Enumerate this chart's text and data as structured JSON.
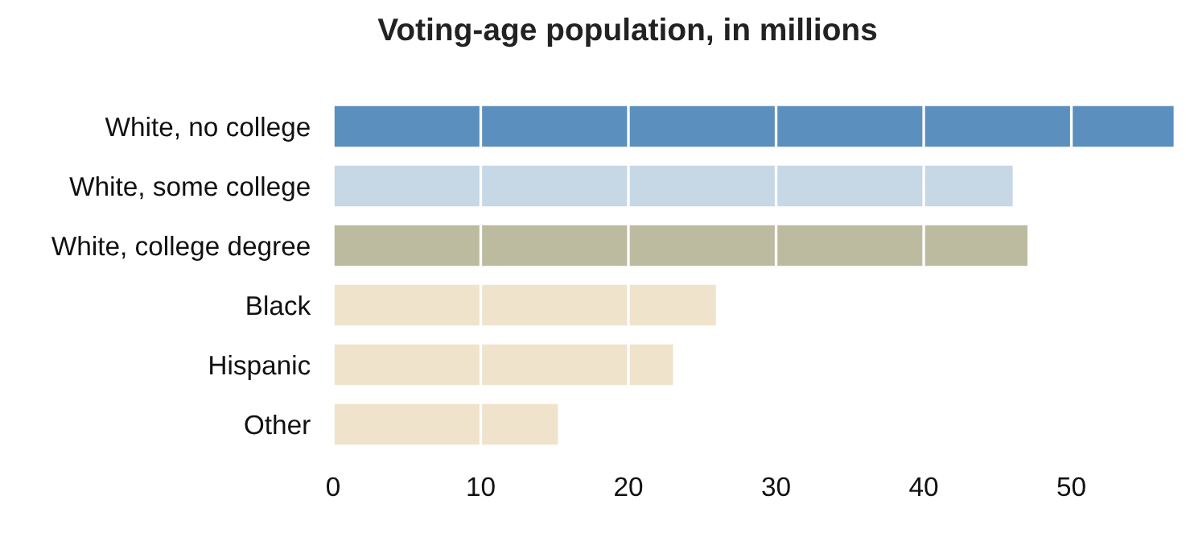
{
  "chart_data": {
    "type": "bar",
    "orientation": "horizontal",
    "title": "Voting-age population, in millions",
    "categories": [
      "White, no college",
      "White, some college",
      "White, college degree",
      "Black",
      "Hispanic",
      "Other"
    ],
    "values": [
      57,
      46.1,
      47.1,
      26,
      23.1,
      15.3
    ],
    "colors": [
      "#5b8fbe",
      "#c6d7e6",
      "#bcbba0",
      "#efe3cb",
      "#efe3cb",
      "#efe3cb"
    ],
    "xlim": [
      0,
      57
    ],
    "xticks": [
      0,
      10,
      20,
      30,
      40,
      50
    ],
    "grid": "x"
  }
}
